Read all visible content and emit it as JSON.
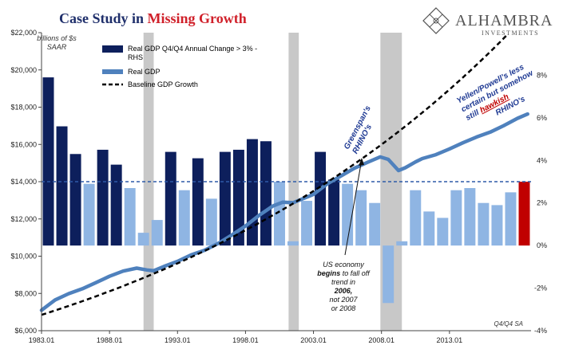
{
  "title": {
    "prefix": "Case Study in ",
    "highlight": "Missing Growth",
    "prefix_color": "#1f2f6b",
    "highlight_color": "#d0202a"
  },
  "logo": {
    "name": "ALHAMBRA",
    "sub": "INVESTMENTS",
    "icon": "diamond-lattice-icon"
  },
  "units_note": "billions of $s\nSAAR",
  "corner_note": "Q4/Q4 SA",
  "annotations": {
    "greenspan": "Greenspan's\nRHINO's",
    "yellen_pre": "Yellen/Powell's less\ncertain but somehow\nstill ",
    "yellen_hawkish": "hawkish",
    "yellen_post": "RHINO's",
    "us_economy": [
      {
        "text": "US economy",
        "bold": false
      },
      {
        "text": "begins",
        "bold": true,
        "after": " to fall off"
      },
      {
        "text": "trend in",
        "bold": false
      },
      {
        "text": "2006,",
        "bold": true
      },
      {
        "text": "not 2007",
        "bold": false
      },
      {
        "text": "or 2008",
        "bold": false
      }
    ]
  },
  "colors": {
    "bar_dark": "#0d1f5c",
    "bar_light": "#8fb5e3",
    "bar_red": "#c00000",
    "line": "#4f81bd",
    "recession": "#c8c8c8",
    "threshold": "#2e5aa8",
    "label_blue": "#1f3a93"
  },
  "chart_data": {
    "type": "bar+line",
    "left_axis": {
      "label": "billions of $s SAAR",
      "ylim": [
        6000,
        22000
      ],
      "ticks": [
        "$6,000",
        "$8,000",
        "$10,000",
        "$12,000",
        "$14,000",
        "$16,000",
        "$18,000",
        "$20,000",
        "$22,000"
      ],
      "tick_values": [
        6000,
        8000,
        10000,
        12000,
        14000,
        16000,
        18000,
        20000,
        22000
      ]
    },
    "right_axis": {
      "ylim": [
        -4,
        10
      ],
      "ticks": [
        "-4%",
        "-2%",
        "0%",
        "2%",
        "4%",
        "6%",
        "8%"
      ],
      "tick_values": [
        -4,
        -2,
        0,
        2,
        4,
        6,
        8
      ]
    },
    "x_axis": {
      "ticks": [
        "1983.01",
        "1988.01",
        "1993.01",
        "1998.01",
        "2003.01",
        "2008.01",
        "2013.01"
      ],
      "tick_years": [
        1983,
        1988,
        1993,
        1998,
        2003,
        2008,
        2013
      ],
      "range": [
        1983,
        2019
      ]
    },
    "recessions": [
      [
        1990.5,
        1991.25
      ],
      [
        2001.17,
        2001.92
      ],
      [
        2007.92,
        2009.5
      ]
    ],
    "threshold_pct": 3,
    "bars": {
      "name": "Real GDP Q4/Q4 Annual Change > 3% - RHS",
      "years": [
        1983,
        1984,
        1985,
        1986,
        1987,
        1988,
        1989,
        1990,
        1991,
        1992,
        1993,
        1994,
        1995,
        1996,
        1997,
        1998,
        1999,
        2000,
        2001,
        2002,
        2003,
        2004,
        2005,
        2006,
        2007,
        2008,
        2009,
        2010,
        2011,
        2012,
        2013,
        2014,
        2015,
        2016,
        2017,
        2018
      ],
      "values": [
        7.9,
        5.6,
        4.3,
        2.9,
        4.5,
        3.8,
        2.7,
        0.6,
        1.2,
        4.4,
        2.6,
        4.1,
        2.2,
        4.4,
        4.5,
        5.0,
        4.9,
        3.0,
        0.2,
        2.1,
        4.4,
        3.1,
        2.9,
        2.6,
        2.0,
        -2.7,
        0.2,
        2.6,
        1.6,
        1.3,
        2.6,
        2.7,
        2.0,
        1.9,
        2.5,
        3.0
      ]
    },
    "line_series": {
      "name": "Real GDP",
      "points": [
        [
          1983.0,
          7100
        ],
        [
          1984.0,
          7650
        ],
        [
          1985.0,
          7990
        ],
        [
          1986.0,
          8250
        ],
        [
          1987.0,
          8580
        ],
        [
          1988.0,
          8920
        ],
        [
          1989.0,
          9200
        ],
        [
          1990.0,
          9360
        ],
        [
          1990.75,
          9260
        ],
        [
          1991.25,
          9220
        ],
        [
          1992.0,
          9450
        ],
        [
          1993.0,
          9720
        ],
        [
          1994.0,
          10070
        ],
        [
          1995.0,
          10320
        ],
        [
          1996.0,
          10690
        ],
        [
          1997.0,
          11140
        ],
        [
          1998.0,
          11620
        ],
        [
          1999.0,
          12190
        ],
        [
          2000.0,
          12690
        ],
        [
          2000.75,
          12900
        ],
        [
          2001.5,
          12870
        ],
        [
          2002.0,
          13020
        ],
        [
          2003.0,
          13320
        ],
        [
          2004.0,
          13880
        ],
        [
          2005.0,
          14300
        ],
        [
          2006.0,
          14720
        ],
        [
          2007.0,
          15050
        ],
        [
          2007.9,
          15330
        ],
        [
          2008.5,
          15200
        ],
        [
          2009.25,
          14600
        ],
        [
          2009.75,
          14750
        ],
        [
          2010.5,
          15060
        ],
        [
          2011.0,
          15240
        ],
        [
          2012.0,
          15450
        ],
        [
          2013.0,
          15760
        ],
        [
          2014.0,
          16090
        ],
        [
          2015.0,
          16400
        ],
        [
          2016.0,
          16660
        ],
        [
          2017.0,
          17010
        ],
        [
          2018.0,
          17400
        ],
        [
          2018.75,
          17630
        ]
      ]
    },
    "baseline_series": {
      "name": "Baseline GDP Growth",
      "start": [
        1983.0,
        6850
      ],
      "annual_growth": 0.0345,
      "end_year": 2019
    }
  }
}
